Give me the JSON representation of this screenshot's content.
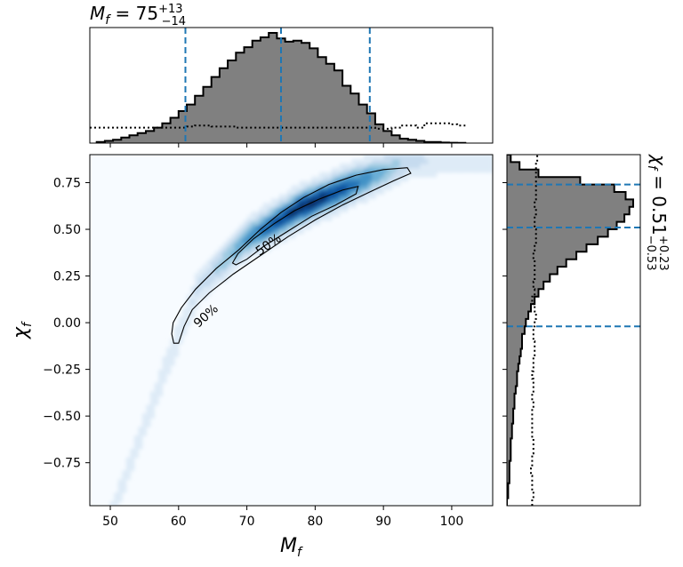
{
  "chart_data": [
    {
      "type": "histogram",
      "panel": "top-marginal",
      "title": {
        "base": "M",
        "sub": "f",
        "value": " = 75",
        "sup": "+13",
        "sub2": "−14"
      },
      "x": "M_f",
      "xlim": [
        47,
        106
      ],
      "bins": [
        48,
        49.2,
        50.4,
        51.6,
        52.8,
        54,
        55.2,
        56.4,
        57.6,
        58.8,
        60,
        61.2,
        62.4,
        63.6,
        64.8,
        66,
        67.2,
        68.4,
        69.6,
        70.8,
        72,
        73.2,
        74.4,
        75.6,
        76.8,
        78,
        79.2,
        80.4,
        81.6,
        82.8,
        84,
        85.2,
        86.4,
        87.6,
        88.8,
        90,
        91.2,
        92.4,
        93.6,
        94.8,
        96,
        97.2,
        98.4,
        99.6,
        100.8,
        102
      ],
      "posterior_density": [
        0.01,
        0.02,
        0.03,
        0.05,
        0.07,
        0.09,
        0.11,
        0.14,
        0.18,
        0.23,
        0.29,
        0.35,
        0.43,
        0.51,
        0.6,
        0.68,
        0.75,
        0.82,
        0.87,
        0.93,
        0.96,
        1.0,
        0.95,
        0.92,
        0.93,
        0.91,
        0.86,
        0.78,
        0.72,
        0.66,
        0.52,
        0.45,
        0.35,
        0.27,
        0.17,
        0.11,
        0.07,
        0.04,
        0.03,
        0.02,
        0.01,
        0.01,
        0.005,
        0.003,
        0.002
      ],
      "prior_density": [
        0.14,
        0.14,
        0.14,
        0.14,
        0.14,
        0.14,
        0.14,
        0.14,
        0.14,
        0.14,
        0.14,
        0.15,
        0.16,
        0.16,
        0.15,
        0.15,
        0.15,
        0.14,
        0.14,
        0.14,
        0.14,
        0.14,
        0.14,
        0.14,
        0.14,
        0.14,
        0.14,
        0.14,
        0.14,
        0.14,
        0.14,
        0.14,
        0.14,
        0.14,
        0.13,
        0.13,
        0.14,
        0.16,
        0.16,
        0.14,
        0.18,
        0.18,
        0.18,
        0.17,
        0.16
      ],
      "vlines": [
        61,
        75,
        88
      ]
    },
    {
      "type": "histogram",
      "panel": "right-marginal",
      "title": {
        "base": "χ",
        "sub": "f",
        "value": " = 0.51",
        "sup": "+0.23",
        "sub2": "−0.53"
      },
      "y": "chi_f",
      "ylim": [
        -0.98,
        0.9
      ],
      "bins": [
        -0.98,
        -0.94,
        -0.9,
        -0.86,
        -0.82,
        -0.78,
        -0.74,
        -0.7,
        -0.66,
        -0.62,
        -0.58,
        -0.54,
        -0.5,
        -0.46,
        -0.42,
        -0.38,
        -0.34,
        -0.3,
        -0.26,
        -0.22,
        -0.18,
        -0.14,
        -0.1,
        -0.06,
        -0.02,
        0.02,
        0.06,
        0.1,
        0.14,
        0.18,
        0.22,
        0.26,
        0.3,
        0.34,
        0.38,
        0.42,
        0.46,
        0.5,
        0.54,
        0.58,
        0.62,
        0.66,
        0.7,
        0.74,
        0.78,
        0.82,
        0.86,
        0.9
      ],
      "posterior_density": [
        0.0,
        0.01,
        0.01,
        0.02,
        0.02,
        0.02,
        0.03,
        0.03,
        0.03,
        0.04,
        0.04,
        0.05,
        0.05,
        0.06,
        0.06,
        0.07,
        0.08,
        0.08,
        0.09,
        0.1,
        0.11,
        0.12,
        0.12,
        0.14,
        0.15,
        0.17,
        0.19,
        0.22,
        0.25,
        0.29,
        0.34,
        0.4,
        0.47,
        0.55,
        0.63,
        0.72,
        0.8,
        0.87,
        0.93,
        0.97,
        1.0,
        0.94,
        0.85,
        0.58,
        0.25,
        0.1,
        0.03
      ],
      "prior_density": [
        0.2,
        0.21,
        0.2,
        0.2,
        0.19,
        0.2,
        0.2,
        0.21,
        0.21,
        0.2,
        0.2,
        0.2,
        0.2,
        0.21,
        0.2,
        0.21,
        0.21,
        0.2,
        0.21,
        0.21,
        0.22,
        0.22,
        0.21,
        0.21,
        0.22,
        0.23,
        0.22,
        0.2,
        0.22,
        0.21,
        0.22,
        0.22,
        0.22,
        0.21,
        0.22,
        0.23,
        0.23,
        0.22,
        0.22,
        0.23,
        0.22,
        0.23,
        0.23,
        0.23,
        0.23,
        0.23,
        0.24
      ],
      "hlines": [
        -0.02,
        0.51,
        0.74
      ]
    },
    {
      "type": "heatmap",
      "panel": "joint",
      "xlabel": {
        "base": "M",
        "sub": "f"
      },
      "ylabel": {
        "base": "χ",
        "sub": "f"
      },
      "xlim": [
        47,
        106
      ],
      "ylim": [
        -0.98,
        0.9
      ],
      "xticks": [
        50,
        60,
        70,
        80,
        90,
        100
      ],
      "yticks": [
        -0.75,
        -0.5,
        -0.25,
        0.0,
        0.25,
        0.5,
        0.75
      ],
      "ytick_labels": [
        "−0.75",
        "−0.50",
        "−0.25",
        "0.00",
        "0.25",
        "0.50",
        "0.75"
      ],
      "ridge_points": [
        [
          52,
          -0.85
        ],
        [
          58,
          -0.25
        ],
        [
          63,
          0.2
        ],
        [
          70,
          0.45
        ],
        [
          78,
          0.62
        ],
        [
          86,
          0.75
        ],
        [
          94,
          0.87
        ]
      ],
      "colormap": [
        "#f7fbff",
        "#deebf7",
        "#c6dbef",
        "#9ecae1",
        "#6baed6",
        "#4292c6",
        "#2171b5",
        "#08519c",
        "#08306b"
      ],
      "contours": [
        {
          "label": "90%",
          "points": [
            [
              59.3,
              -0.11
            ],
            [
              59.0,
              -0.06
            ],
            [
              59.2,
              0.0
            ],
            [
              60.4,
              0.08
            ],
            [
              62.5,
              0.18
            ],
            [
              65.5,
              0.29
            ],
            [
              68.8,
              0.39
            ],
            [
              72.0,
              0.5
            ],
            [
              75.0,
              0.59
            ],
            [
              78.3,
              0.67
            ],
            [
              82.0,
              0.74
            ],
            [
              86.0,
              0.79
            ],
            [
              90.0,
              0.82
            ],
            [
              93.5,
              0.83
            ],
            [
              94.0,
              0.8
            ],
            [
              91.5,
              0.76
            ],
            [
              88.0,
              0.7
            ],
            [
              84.0,
              0.63
            ],
            [
              80.0,
              0.55
            ],
            [
              76.0,
              0.46
            ],
            [
              72.0,
              0.36
            ],
            [
              68.0,
              0.26
            ],
            [
              64.5,
              0.16
            ],
            [
              62.0,
              0.07
            ],
            [
              60.8,
              -0.02
            ],
            [
              60.0,
              -0.11
            ]
          ]
        },
        {
          "label": "50%",
          "points": [
            [
              67.9,
              0.32
            ],
            [
              68.7,
              0.37
            ],
            [
              71.0,
              0.45
            ],
            [
              74.0,
              0.53
            ],
            [
              77.0,
              0.6
            ],
            [
              80.5,
              0.66
            ],
            [
              84.0,
              0.71
            ],
            [
              86.3,
              0.73
            ],
            [
              86.0,
              0.69
            ],
            [
              83.0,
              0.63
            ],
            [
              79.5,
              0.57
            ],
            [
              76.0,
              0.49
            ],
            [
              72.5,
              0.41
            ],
            [
              70.0,
              0.34
            ],
            [
              68.4,
              0.31
            ]
          ]
        }
      ]
    }
  ]
}
